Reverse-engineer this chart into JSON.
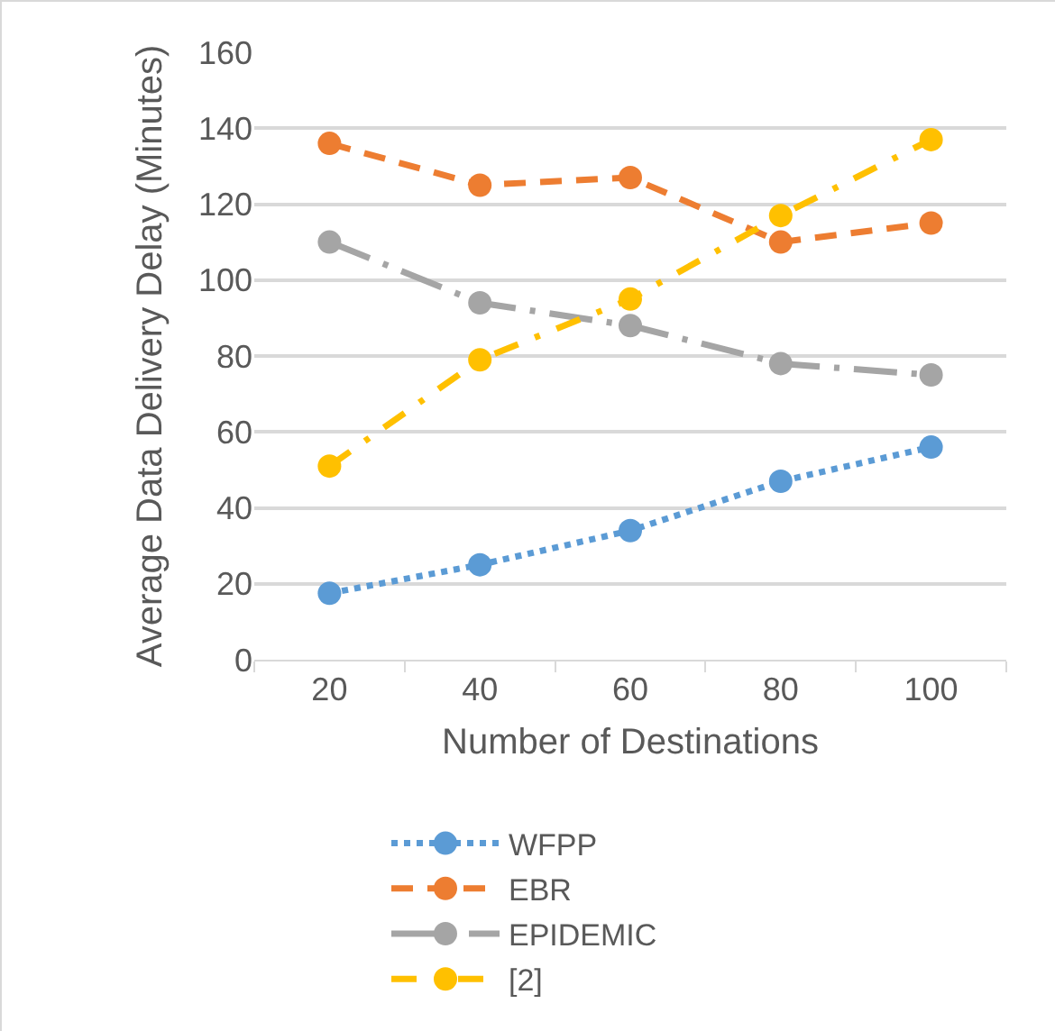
{
  "chart_data": {
    "type": "line",
    "xlabel": "Number of Destinations",
    "ylabel": "Average Data Delivery Delay (Minutes)",
    "categories": [
      "20",
      "40",
      "60",
      "80",
      "100"
    ],
    "series": [
      {
        "name": "WFPP",
        "color": "#5b9bd5",
        "line_style": "dotted",
        "values": [
          17.5,
          25,
          34,
          47,
          56
        ]
      },
      {
        "name": "EBR",
        "color": "#ed7d31",
        "line_style": "dashed",
        "values": [
          136,
          125,
          127,
          110,
          115
        ]
      },
      {
        "name": "EPIDEMIC",
        "color": "#a5a5a5",
        "line_style": "longdashdot",
        "values": [
          110,
          94,
          88,
          78,
          75
        ]
      },
      {
        "name": "[2]",
        "color": "#ffc000",
        "line_style": "dashdot",
        "values": [
          51,
          79,
          95,
          117,
          137
        ]
      }
    ],
    "ylim": [
      0,
      160
    ],
    "yticks": [
      0,
      20,
      40,
      60,
      80,
      100,
      120,
      140,
      160
    ],
    "grid": "y",
    "legend": "bottom",
    "marker": "circle"
  }
}
